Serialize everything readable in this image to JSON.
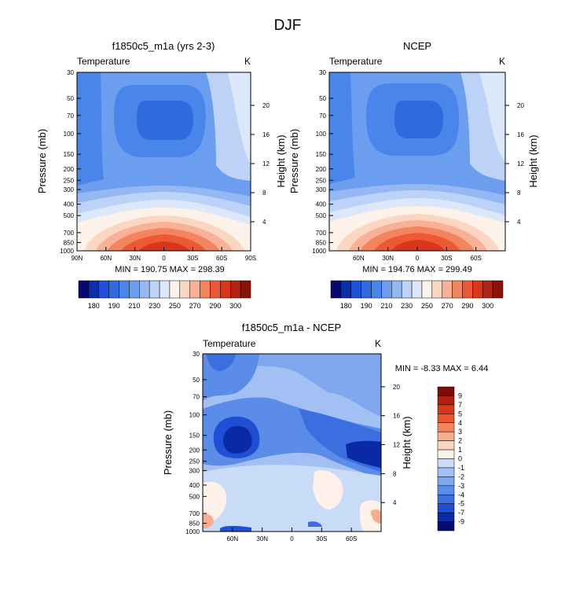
{
  "title": "DJF",
  "chart_data": [
    {
      "type": "heatmap",
      "title": "f1850c5_m1a (yrs 2-3)",
      "variable": "Temperature",
      "units": "K",
      "ylabel": "Pressure (mb)",
      "ylabel_right": "Height (km)",
      "y_ticks": [
        "30",
        "50",
        "70",
        "100",
        "150",
        "200",
        "250",
        "300",
        "400",
        "500",
        "700",
        "850",
        "1000"
      ],
      "y_right_ticks": [
        "20",
        "16",
        "12",
        "8",
        "4"
      ],
      "x_ticks": [
        "90N",
        "60N",
        "30N",
        "0",
        "30S",
        "60S",
        "90S"
      ],
      "stats": "MIN = 190.75  MAX = 298.39",
      "min": 190.75,
      "max": 298.39,
      "colorbar_labels": [
        "180",
        "190",
        "210",
        "230",
        "250",
        "270",
        "290",
        "300"
      ]
    },
    {
      "type": "heatmap",
      "title": "NCEP",
      "variable": "Temperature",
      "units": "K",
      "ylabel": "Pressure (mb)",
      "ylabel_right": "Height (km)",
      "y_ticks": [
        "30",
        "50",
        "70",
        "100",
        "150",
        "200",
        "250",
        "300",
        "400",
        "500",
        "700",
        "850",
        "1000"
      ],
      "y_right_ticks": [
        "20",
        "16",
        "12",
        "8",
        "4"
      ],
      "x_ticks": [
        "60N",
        "30N",
        "0",
        "30S",
        "60S"
      ],
      "stats": "MIN = 194.76  MAX = 299.49",
      "min": 194.76,
      "max": 299.49,
      "colorbar_labels": [
        "180",
        "190",
        "210",
        "230",
        "250",
        "270",
        "290",
        "300"
      ]
    },
    {
      "type": "heatmap",
      "title": "f1850c5_m1a - NCEP",
      "variable": "Temperature",
      "units": "K",
      "ylabel": "Pressure (mb)",
      "ylabel_right": "Height (km)",
      "y_ticks": [
        "30",
        "50",
        "70",
        "100",
        "150",
        "200",
        "250",
        "300",
        "400",
        "500",
        "700",
        "850",
        "1000"
      ],
      "y_right_ticks": [
        "20",
        "16",
        "12",
        "8",
        "4"
      ],
      "x_ticks": [
        "60N",
        "30N",
        "0",
        "30S",
        "60S"
      ],
      "stats": "MIN =  -8.33  MAX =   6.44",
      "min": -8.33,
      "max": 6.44,
      "colorbar_labels": [
        "9",
        "7",
        "5",
        "4",
        "3",
        "2",
        "1",
        "0",
        "-1",
        "-2",
        "-3",
        "-4",
        "-5",
        "-7",
        "-9"
      ]
    }
  ],
  "colors": {
    "temperature_scale": [
      "#08086e",
      "#0b2fa8",
      "#1e50d8",
      "#2f6be0",
      "#4a86ea",
      "#6c9ef0",
      "#93b8f4",
      "#bcd3f7",
      "#dce8f9",
      "#fdf2ea",
      "#fbd6c0",
      "#f8b096",
      "#f2845e",
      "#ec5a35",
      "#d9361b",
      "#b32311",
      "#8a1209"
    ],
    "difference_scale": [
      "#7a0d0d",
      "#b21e10",
      "#d9371b",
      "#ee5430",
      "#f4855f",
      "#f7ae8f",
      "#fbd5c2",
      "#fdf1ea",
      "#c9dcf7",
      "#a2c0f3",
      "#7ea7ee",
      "#5b8ce8",
      "#3b6fe0",
      "#1f4fd4",
      "#0a29a6",
      "#070a6e"
    ]
  }
}
